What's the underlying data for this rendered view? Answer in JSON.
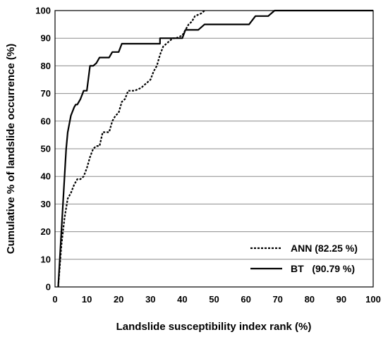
{
  "chart_data": {
    "type": "line",
    "xlabel": "Landslide susceptibility index rank (%)",
    "ylabel": "Cumulative % of landslide occurrence (%)",
    "xlim": [
      0,
      100
    ],
    "ylim": [
      0,
      100
    ],
    "x_ticks": [
      "0",
      "10",
      "20",
      "30",
      "40",
      "50",
      "60",
      "70",
      "80",
      "90",
      "100"
    ],
    "y_ticks": [
      "0",
      "10",
      "20",
      "30",
      "40",
      "50",
      "60",
      "70",
      "80",
      "90",
      "100"
    ],
    "grid": "horizontal",
    "legend_position": "bottom-right",
    "series": [
      {
        "name": "ANN (82.25 %)",
        "style": "dotted",
        "color": "#000000",
        "points": [
          [
            1,
            0
          ],
          [
            2,
            15
          ],
          [
            3,
            25
          ],
          [
            4,
            32
          ],
          [
            5,
            34
          ],
          [
            6,
            37
          ],
          [
            7,
            39
          ],
          [
            8,
            39
          ],
          [
            9,
            40
          ],
          [
            10,
            43
          ],
          [
            11,
            47
          ],
          [
            12,
            50
          ],
          [
            13,
            51
          ],
          [
            14,
            51
          ],
          [
            15,
            56
          ],
          [
            17,
            56
          ],
          [
            18,
            60
          ],
          [
            19,
            62
          ],
          [
            20,
            63
          ],
          [
            21,
            67
          ],
          [
            22,
            68
          ],
          [
            23,
            71
          ],
          [
            25,
            71
          ],
          [
            27,
            72
          ],
          [
            28,
            73
          ],
          [
            29,
            74
          ],
          [
            30,
            75
          ],
          [
            31,
            78
          ],
          [
            32,
            80
          ],
          [
            33,
            84
          ],
          [
            34,
            87
          ],
          [
            35,
            88
          ],
          [
            36,
            89
          ],
          [
            37,
            90
          ],
          [
            38,
            90
          ],
          [
            40,
            91
          ],
          [
            41,
            93
          ],
          [
            42,
            95
          ],
          [
            43,
            96
          ],
          [
            44,
            98
          ],
          [
            46,
            99
          ],
          [
            47,
            100
          ]
        ]
      },
      {
        "name": "BT   (90.79 %)",
        "style": "solid",
        "color": "#000000",
        "points": [
          [
            1,
            0
          ],
          [
            2,
            20
          ],
          [
            3,
            40
          ],
          [
            3.5,
            50
          ],
          [
            4,
            56
          ],
          [
            5,
            62
          ],
          [
            6,
            65
          ],
          [
            6.5,
            66
          ],
          [
            7,
            66
          ],
          [
            8,
            68
          ],
          [
            9,
            71
          ],
          [
            10,
            71
          ],
          [
            11,
            80
          ],
          [
            12,
            80
          ],
          [
            13,
            81
          ],
          [
            14,
            83
          ],
          [
            17,
            83
          ],
          [
            18,
            85
          ],
          [
            20,
            85
          ],
          [
            21,
            88
          ],
          [
            33,
            88
          ],
          [
            33,
            90
          ],
          [
            40,
            90
          ],
          [
            41,
            93
          ],
          [
            45,
            93
          ],
          [
            47,
            95
          ],
          [
            61,
            95
          ],
          [
            63,
            98
          ],
          [
            67,
            98
          ],
          [
            69,
            100
          ],
          [
            100,
            100
          ]
        ]
      }
    ]
  }
}
